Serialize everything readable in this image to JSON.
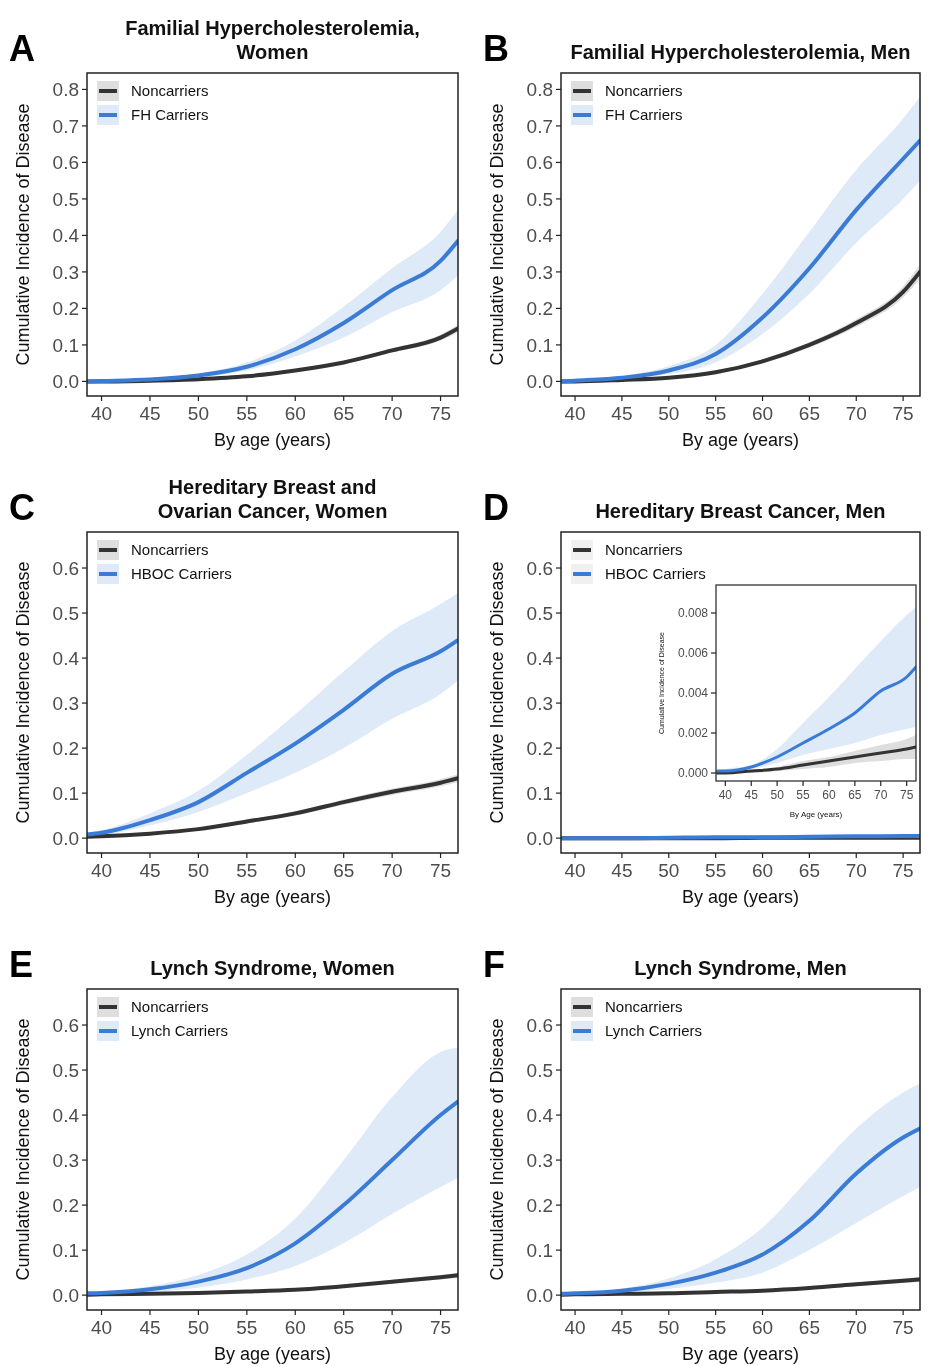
{
  "chart_data": [
    {
      "type": "line",
      "title": "Familial Hypercholesterolemia, Women",
      "annotations": [
        "A"
      ],
      "xlabel": "By age (years)",
      "ylabel": "Cumulative Incidence of Disease",
      "legend": "top left",
      "xlim": [
        38.5,
        76.8
      ],
      "xticks": [
        40,
        45,
        50,
        55,
        60,
        65,
        70,
        75
      ],
      "ylim": [
        -0.04,
        0.845
      ],
      "yticks": [
        {
          "value": 0,
          "label": "0.0"
        },
        0.1,
        0.2,
        0.3,
        0.4,
        0.5,
        0.6,
        0.7,
        0.8
      ],
      "x": [
        38.5,
        40,
        45,
        50,
        55,
        60,
        65,
        70,
        75,
        76.8
      ],
      "series": [
        {
          "name": "Noncarriers",
          "color": "#333333",
          "values": [
            0,
            0,
            0.002,
            0.006,
            0.014,
            0.03,
            0.052,
            0.085,
            0.12,
            0.145
          ],
          "lower": [
            0,
            0,
            0.001,
            0.005,
            0.012,
            0.027,
            0.048,
            0.079,
            0.112,
            0.135
          ],
          "upper": [
            0,
            0,
            0.003,
            0.007,
            0.016,
            0.033,
            0.056,
            0.091,
            0.128,
            0.155
          ]
        },
        {
          "name": "FH Carriers",
          "color": "#3a7bd5",
          "values": [
            0,
            0.001,
            0.005,
            0.016,
            0.04,
            0.088,
            0.16,
            0.25,
            0.33,
            0.385
          ],
          "lower": [
            0,
            0,
            0.003,
            0.011,
            0.03,
            0.068,
            0.12,
            0.19,
            0.25,
            0.29
          ],
          "upper": [
            0,
            0.002,
            0.008,
            0.022,
            0.052,
            0.112,
            0.205,
            0.31,
            0.41,
            0.47
          ]
        }
      ]
    },
    {
      "type": "line",
      "title": "Familial Hypercholesterolemia, Men",
      "annotations": [
        "B"
      ],
      "xlabel": "By age (years)",
      "ylabel": "Cumulative Incidence of Disease",
      "legend": "top left",
      "xlim": [
        38.5,
        76.8
      ],
      "xticks": [
        40,
        45,
        50,
        55,
        60,
        65,
        70,
        75
      ],
      "ylim": [
        -0.04,
        0.845
      ],
      "yticks": [
        {
          "value": 0,
          "label": "0.0"
        },
        0.1,
        0.2,
        0.3,
        0.4,
        0.5,
        0.6,
        0.7,
        0.8
      ],
      "x": [
        38.5,
        40,
        45,
        50,
        55,
        60,
        65,
        70,
        75,
        76.8
      ],
      "series": [
        {
          "name": "Noncarriers",
          "color": "#333333",
          "values": [
            0,
            0,
            0.004,
            0.01,
            0.025,
            0.055,
            0.1,
            0.16,
            0.245,
            0.3
          ],
          "lower": [
            0,
            0,
            0.003,
            0.009,
            0.022,
            0.05,
            0.093,
            0.15,
            0.23,
            0.28
          ],
          "upper": [
            0,
            0,
            0.005,
            0.011,
            0.028,
            0.06,
            0.107,
            0.17,
            0.26,
            0.32
          ]
        },
        {
          "name": "FH Carriers",
          "color": "#3a7bd5",
          "values": [
            0,
            0.002,
            0.01,
            0.03,
            0.075,
            0.175,
            0.31,
            0.47,
            0.61,
            0.66
          ],
          "lower": [
            0,
            0.001,
            0.006,
            0.02,
            0.052,
            0.13,
            0.24,
            0.38,
            0.5,
            0.55
          ],
          "upper": [
            0,
            0.003,
            0.015,
            0.042,
            0.1,
            0.24,
            0.41,
            0.58,
            0.72,
            0.78
          ]
        }
      ]
    },
    {
      "type": "line",
      "title": "Hereditary Breast and Ovarian Cancer, Women",
      "annotations": [
        "C"
      ],
      "xlabel": "By age (years)",
      "ylabel": "Cumulative Incidence of Disease",
      "legend": "top left",
      "xlim": [
        38.5,
        76.8
      ],
      "xticks": [
        40,
        45,
        50,
        55,
        60,
        65,
        70,
        75
      ],
      "ylim": [
        -0.033,
        0.68
      ],
      "yticks": [
        {
          "value": 0,
          "label": "0.0"
        },
        0.1,
        0.2,
        0.3,
        0.4,
        0.5,
        0.6
      ],
      "x": [
        38.5,
        40,
        45,
        50,
        55,
        60,
        65,
        70,
        75,
        76.8
      ],
      "series": [
        {
          "name": "Noncarriers",
          "color": "#333333",
          "values": [
            0.003,
            0.004,
            0.01,
            0.02,
            0.037,
            0.055,
            0.08,
            0.103,
            0.123,
            0.133
          ],
          "lower": [
            0.002,
            0.003,
            0.008,
            0.017,
            0.033,
            0.05,
            0.074,
            0.096,
            0.115,
            0.124
          ],
          "upper": [
            0.004,
            0.005,
            0.012,
            0.023,
            0.041,
            0.06,
            0.086,
            0.11,
            0.131,
            0.142
          ]
        },
        {
          "name": "HBOC Carriers",
          "color": "#3a7bd5",
          "values": [
            0.008,
            0.012,
            0.04,
            0.08,
            0.145,
            0.21,
            0.285,
            0.365,
            0.415,
            0.44
          ],
          "lower": [
            0.004,
            0.007,
            0.028,
            0.058,
            0.1,
            0.145,
            0.2,
            0.265,
            0.32,
            0.35
          ],
          "upper": [
            0.012,
            0.018,
            0.055,
            0.105,
            0.185,
            0.275,
            0.37,
            0.46,
            0.52,
            0.545
          ]
        }
      ]
    },
    {
      "type": "line",
      "title": "Hereditary Breast Cancer, Men",
      "annotations": [
        "D"
      ],
      "xlabel": "By age (years)",
      "ylabel": "Cumulative Incidence of Disease",
      "legend": "top left",
      "xlim": [
        38.5,
        76.8
      ],
      "xticks": [
        40,
        45,
        50,
        55,
        60,
        65,
        70,
        75
      ],
      "ylim": [
        -0.033,
        0.68
      ],
      "yticks": [
        {
          "value": 0,
          "label": "0.0"
        },
        0.1,
        0.2,
        0.3,
        0.4,
        0.5,
        0.6
      ],
      "x": [
        38.5,
        40,
        45,
        50,
        55,
        60,
        65,
        70,
        75,
        76.8
      ],
      "series": [
        {
          "name": "Noncarriers",
          "color": "#333333",
          "values": [
            0,
            0,
            0,
            0,
            0,
            0.001,
            0.001,
            0.001,
            0.001,
            0.001
          ]
        },
        {
          "name": "HBOC Carriers",
          "color": "#3a7bd5",
          "values": [
            0,
            0,
            0,
            0.001,
            0.002,
            0.002,
            0.003,
            0.004,
            0.005,
            0.005
          ]
        }
      ]
    },
    {
      "type": "line",
      "xlabel": "By Age (years)",
      "ylabel": "Cumulative Incidence of Disease",
      "xlim": [
        38.2,
        76.8
      ],
      "xticks": [
        40,
        45,
        50,
        55,
        60,
        65,
        70,
        75
      ],
      "ylim": [
        -0.0004,
        0.0094
      ],
      "yticks": [
        {
          "value": 0,
          "label": "0.000"
        },
        {
          "value": 0.002,
          "label": "0.002"
        },
        {
          "value": 0.004,
          "label": "0.004"
        },
        {
          "value": 0.006,
          "label": "0.006"
        },
        {
          "value": 0.008,
          "label": "0.008"
        }
      ],
      "x": [
        38.5,
        40,
        45,
        50,
        55,
        60,
        65,
        70,
        75,
        76.8
      ],
      "series": [
        {
          "color": "#333333",
          "values": [
            0,
            0,
            0.0001,
            0.0002,
            0.0004,
            0.0006,
            0.0008,
            0.001,
            0.0012,
            0.0013
          ],
          "lower": [
            0,
            0,
            0,
            0.0001,
            0.0002,
            0.0003,
            0.0005,
            0.0006,
            0.0007,
            0.0007
          ],
          "upper": [
            0,
            0,
            0.0001,
            0.0003,
            0.0006,
            0.0008,
            0.0011,
            0.0014,
            0.0017,
            0.0019
          ]
        },
        {
          "color": "#3a7bd5",
          "values": [
            0.0001,
            0.0001,
            0.0003,
            0.0008,
            0.0015,
            0.0022,
            0.003,
            0.0041,
            0.0048,
            0.0053
          ],
          "lower": [
            0,
            0,
            0.0002,
            0.0005,
            0.0009,
            0.0012,
            0.0015,
            0.0019,
            0.0022,
            0.0023
          ],
          "upper": [
            0.0001,
            0.0002,
            0.0004,
            0.0012,
            0.0025,
            0.0038,
            0.0052,
            0.0066,
            0.0079,
            0.0083
          ]
        }
      ]
    },
    {
      "type": "line",
      "title": "Lynch Syndrome, Women",
      "annotations": [
        "E"
      ],
      "xlabel": "By age (years)",
      "ylabel": "Cumulative Incidence of Disease",
      "legend": "top left",
      "xlim": [
        38.5,
        76.8
      ],
      "xticks": [
        40,
        45,
        50,
        55,
        60,
        65,
        70,
        75
      ],
      "ylim": [
        -0.033,
        0.68
      ],
      "yticks": [
        {
          "value": 0,
          "label": "0.0"
        },
        0.1,
        0.2,
        0.3,
        0.4,
        0.5,
        0.6
      ],
      "x": [
        38.5,
        40,
        45,
        50,
        55,
        60,
        65,
        70,
        75,
        76.8
      ],
      "series": [
        {
          "name": "Noncarriers",
          "color": "#333333",
          "values": [
            0.001,
            0.002,
            0.003,
            0.005,
            0.008,
            0.012,
            0.02,
            0.03,
            0.04,
            0.044
          ],
          "lower": [
            0,
            0.001,
            0.002,
            0.004,
            0.006,
            0.01,
            0.017,
            0.026,
            0.035,
            0.038
          ],
          "upper": [
            0.002,
            0.003,
            0.004,
            0.006,
            0.01,
            0.014,
            0.023,
            0.034,
            0.045,
            0.05
          ]
        },
        {
          "name": "Lynch Carriers",
          "color": "#3a7bd5",
          "values": [
            0.004,
            0.005,
            0.013,
            0.03,
            0.06,
            0.115,
            0.2,
            0.3,
            0.4,
            0.43
          ],
          "lower": [
            0.002,
            0.003,
            0.007,
            0.017,
            0.035,
            0.065,
            0.115,
            0.18,
            0.24,
            0.26
          ],
          "upper": [
            0.006,
            0.008,
            0.02,
            0.045,
            0.09,
            0.17,
            0.3,
            0.44,
            0.54,
            0.55
          ]
        }
      ]
    },
    {
      "type": "line",
      "title": "Lynch Syndrome, Men",
      "annotations": [
        "F"
      ],
      "xlabel": "By age (years)",
      "ylabel": "Cumulative Incidence of Disease",
      "legend": "top left",
      "xlim": [
        38.5,
        76.8
      ],
      "xticks": [
        40,
        45,
        50,
        55,
        60,
        65,
        70,
        75
      ],
      "ylim": [
        -0.033,
        0.68
      ],
      "yticks": [
        {
          "value": 0,
          "label": "0.0"
        },
        0.1,
        0.2,
        0.3,
        0.4,
        0.5,
        0.6
      ],
      "x": [
        38.5,
        40,
        45,
        50,
        55,
        60,
        65,
        70,
        75,
        76.8
      ],
      "series": [
        {
          "name": "Noncarriers",
          "color": "#333333",
          "values": [
            0.001,
            0.002,
            0.003,
            0.004,
            0.007,
            0.01,
            0.016,
            0.024,
            0.032,
            0.035
          ],
          "lower": [
            0,
            0.001,
            0.002,
            0.003,
            0.005,
            0.008,
            0.013,
            0.02,
            0.027,
            0.029
          ],
          "upper": [
            0.002,
            0.003,
            0.004,
            0.005,
            0.009,
            0.012,
            0.019,
            0.028,
            0.037,
            0.041
          ]
        },
        {
          "name": "Lynch Carriers",
          "color": "#3a7bd5",
          "values": [
            0.003,
            0.004,
            0.01,
            0.025,
            0.05,
            0.09,
            0.165,
            0.27,
            0.35,
            0.37
          ],
          "lower": [
            0.001,
            0.002,
            0.006,
            0.014,
            0.028,
            0.05,
            0.1,
            0.16,
            0.22,
            0.24
          ],
          "upper": [
            0.005,
            0.006,
            0.015,
            0.037,
            0.08,
            0.15,
            0.26,
            0.37,
            0.45,
            0.47
          ]
        }
      ]
    }
  ]
}
